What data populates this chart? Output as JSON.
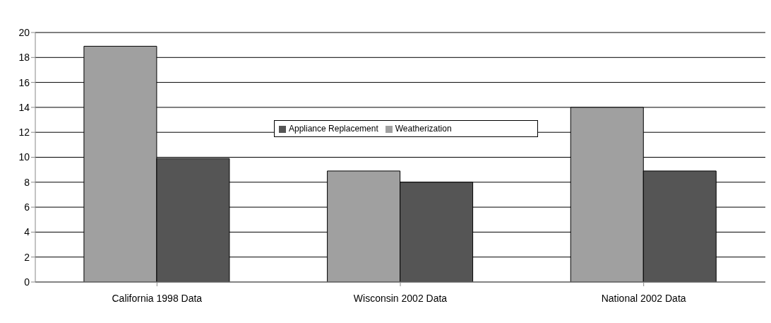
{
  "chart_data": {
    "type": "bar",
    "categories": [
      "California 1998 Data",
      "Wisconsin 2002 Data",
      "National 2002 Data"
    ],
    "series": [
      {
        "name": "Weatherization",
        "color": "#a0a0a0",
        "values": [
          18.9,
          8.9,
          14.0
        ]
      },
      {
        "name": "Appliance Replacement",
        "color": "#555555",
        "values": [
          9.9,
          8.0,
          8.9
        ]
      }
    ],
    "ylim": [
      0,
      20
    ],
    "yticks": [
      0,
      2,
      4,
      6,
      8,
      10,
      12,
      14,
      16,
      18,
      20
    ],
    "grid": "y",
    "legend": "center"
  }
}
